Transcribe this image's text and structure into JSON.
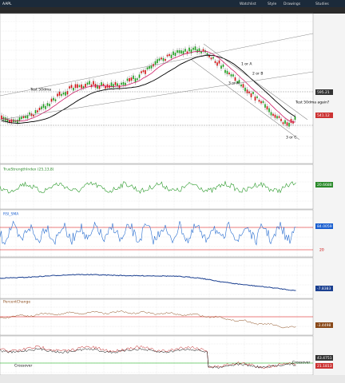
{
  "header": {
    "symbol": "AAPL",
    "tabs": [
      "Watchlist",
      "Style",
      "Drawings",
      "Studies"
    ]
  },
  "main": {
    "annotations": [
      "Test 50dma",
      "Test 50dma again?",
      "1 or A",
      "2 or B",
      "3 or A",
      "3 or C"
    ],
    "price_labels": [
      "595.21",
      "541.12"
    ]
  },
  "panels": [
    {
      "title": "TrueStrengthIndex (25,13,8)",
      "value": "20.6688"
    },
    {
      "title": "RSI_SMA",
      "values": [
        "84.0059",
        "20"
      ]
    },
    {
      "value": "-7.8383"
    },
    {
      "title": "PercentChange",
      "value": "-3.4498"
    },
    {
      "values": [
        "43.4751",
        "21.1813"
      ],
      "annotations": [
        "Crossover",
        "Crossover"
      ]
    }
  ]
}
